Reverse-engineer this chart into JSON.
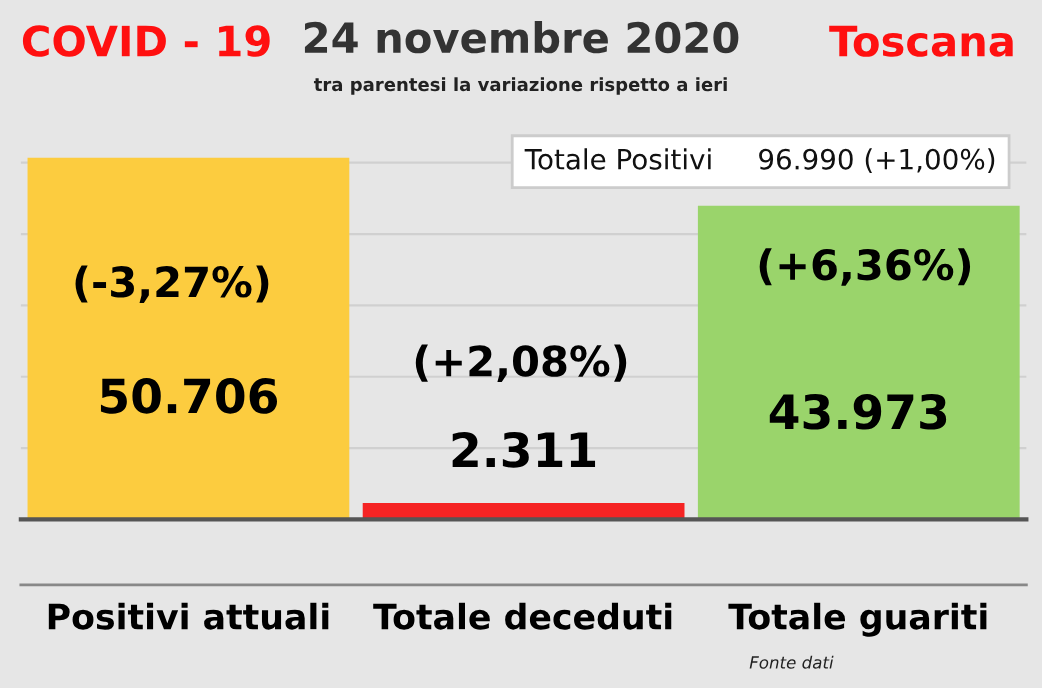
{
  "chart_data": {
    "type": "bar",
    "title": "24 novembre 2020",
    "subtitle": "tra parentesi la variazione rispetto a ieri",
    "categories": [
      "Positivi attuali",
      "Totale deceduti",
      "Totale guariti"
    ],
    "values": [
      50706,
      2311,
      43973
    ],
    "colors": [
      "#fccc3f",
      "#f52323",
      "#9ad46b"
    ],
    "value_labels": [
      "50.706",
      "2.311",
      "43.973"
    ],
    "ylim": [
      0,
      54000
    ],
    "yticks": [
      {
        "value": 10000,
        "label": null
      },
      {
        "value": 20000,
        "label": null
      },
      {
        "value": 30000,
        "label": null
      },
      {
        "value": 40000,
        "label": null
      },
      {
        "value": 50000,
        "label": null
      }
    ],
    "tick_labels": "x",
    "grid": "y",
    "annotations": [
      "(-3,27%)",
      "(+2,08%)",
      "(+6,36%)",
      "COVID - 19",
      "Toscana",
      "Totale Positivi     96.990 (+1,00%)",
      "Fonte dati"
    ]
  }
}
